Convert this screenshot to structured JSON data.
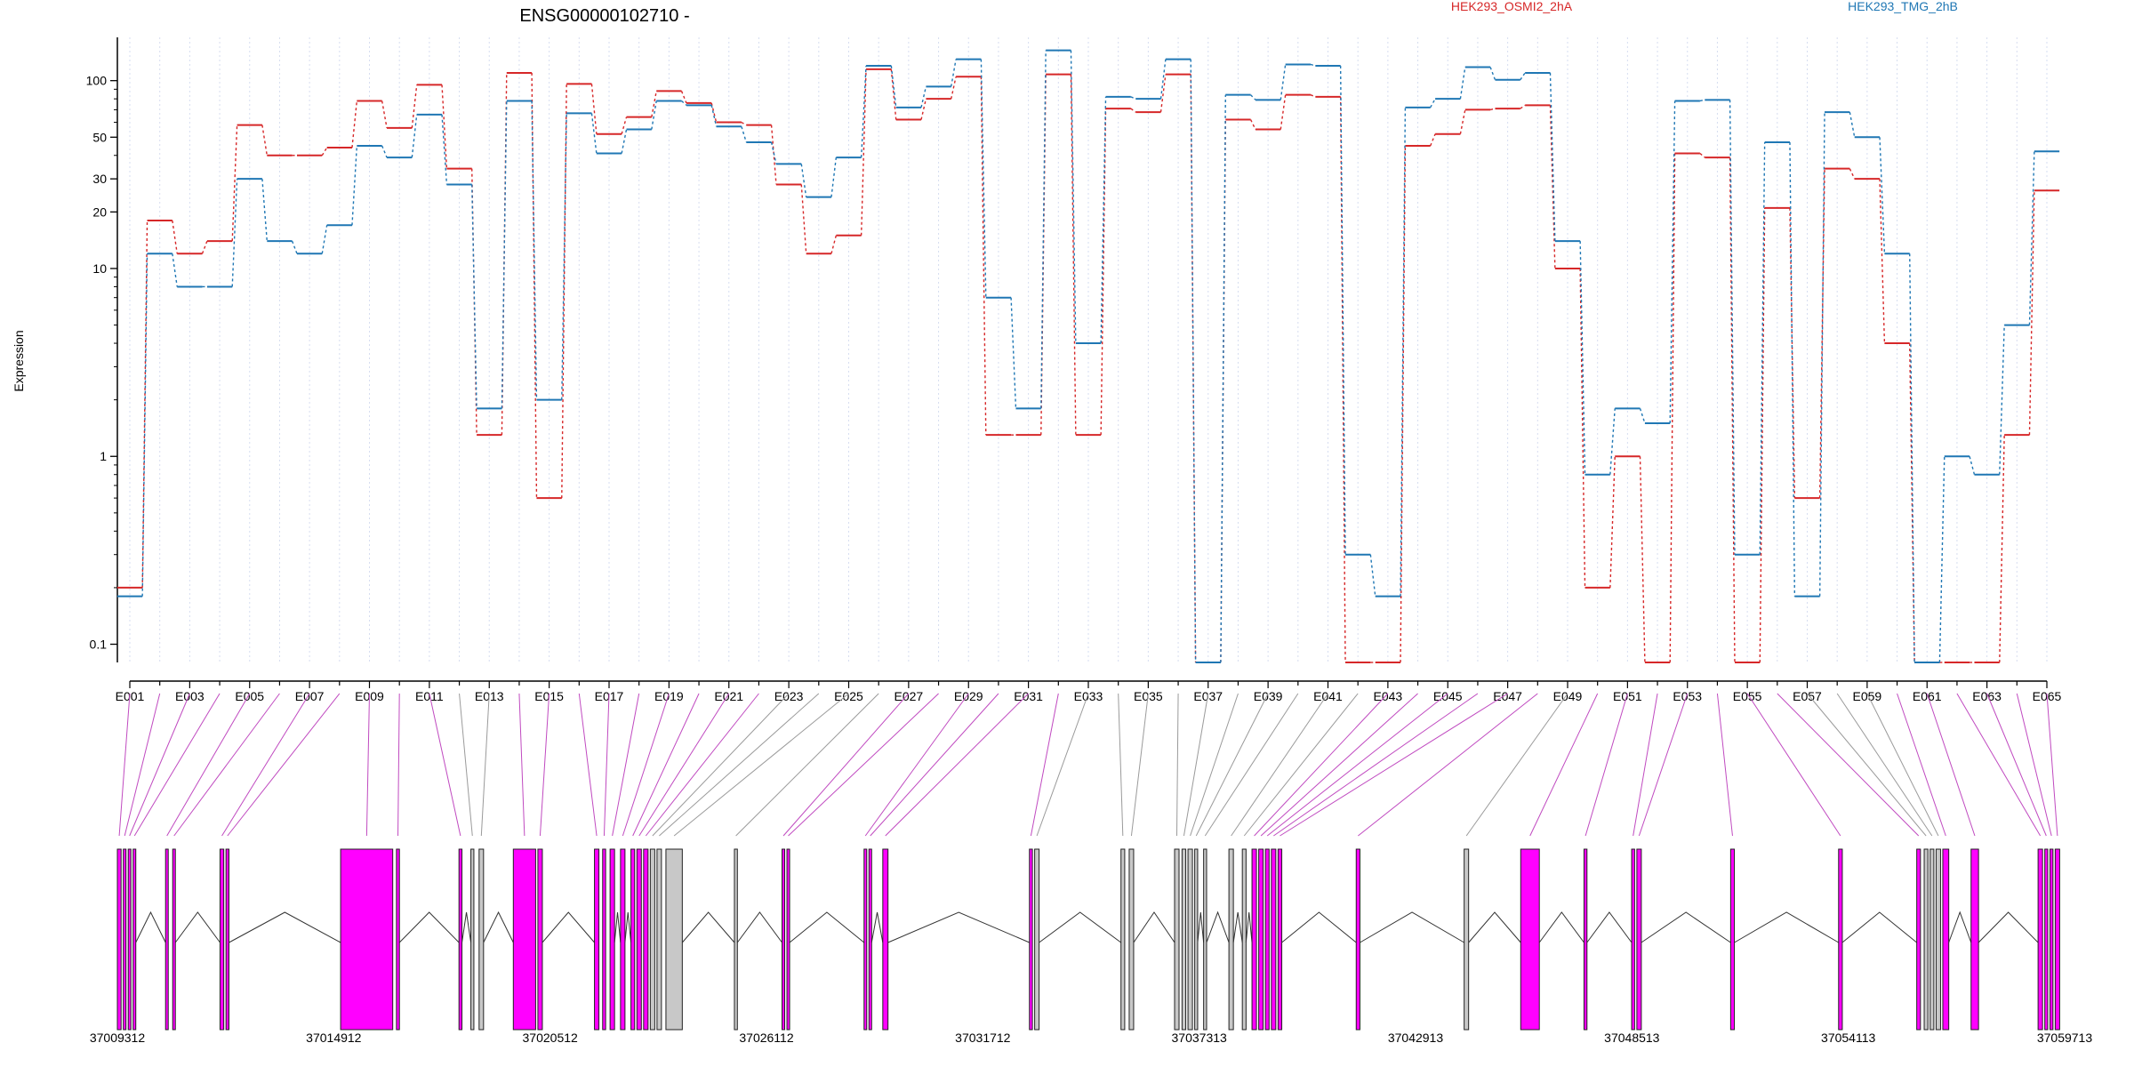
{
  "chart_data": {
    "type": "line",
    "title": "ENSG00000102710 -",
    "ylabel": "Expression",
    "xlabel": "",
    "y_scale": "log",
    "ylim": [
      0.08,
      170
    ],
    "y_ticks": [
      0.1,
      1,
      10,
      20,
      30,
      50,
      100
    ],
    "y_tick_labels": [
      "0.1",
      "1",
      "10",
      "20",
      "30",
      "50",
      "100"
    ],
    "grid": "vertical dotted lines at each exon",
    "legend": "top",
    "categories": [
      "E001",
      "E002",
      "E003",
      "E004",
      "E005",
      "E006",
      "E007",
      "E008",
      "E009",
      "E010",
      "E011",
      "E012",
      "E013",
      "E014",
      "E015",
      "E016",
      "E017",
      "E018",
      "E019",
      "E020",
      "E021",
      "E022",
      "E023",
      "E024",
      "E025",
      "E026",
      "E027",
      "E028",
      "E029",
      "E030",
      "E031",
      "E032",
      "E033",
      "E034",
      "E035",
      "E036",
      "E037",
      "E038",
      "E039",
      "E040",
      "E041",
      "E042",
      "E043",
      "E044",
      "E045",
      "E046",
      "E047",
      "E048",
      "E049",
      "E050",
      "E051",
      "E052",
      "E053",
      "E054",
      "E055",
      "E056",
      "E057",
      "E058",
      "E059",
      "E060",
      "E061",
      "E062",
      "E063",
      "E064",
      "E065"
    ],
    "x_tick_labels": [
      "E001",
      "E003",
      "E005",
      "E007",
      "E009",
      "E011",
      "E013",
      "E015",
      "E017",
      "E019",
      "E021",
      "E023",
      "E025",
      "E027",
      "E029",
      "E031",
      "E033",
      "E035",
      "E037",
      "E039",
      "E041",
      "E043",
      "E045",
      "E047",
      "E049",
      "E051",
      "E053",
      "E055",
      "E057",
      "E059",
      "E061",
      "E063",
      "E065"
    ],
    "series": [
      {
        "name": "HEK293_OSMI2_2hA",
        "color": "#d62728",
        "values": [
          0.2,
          18,
          12,
          14,
          58,
          40,
          40,
          44,
          78,
          56,
          95,
          34,
          1.3,
          110,
          0.6,
          96,
          52,
          64,
          88,
          76,
          60,
          58,
          28,
          12,
          15,
          115,
          62,
          80,
          105,
          1.3,
          1.3,
          108,
          1.3,
          71,
          68,
          108,
          0.08,
          62,
          55,
          84,
          82,
          0.08,
          0.08,
          45,
          52,
          70,
          71,
          74,
          10,
          0.2,
          1,
          0.08,
          41,
          39,
          0.08,
          21,
          0.6,
          34,
          30,
          4,
          0.08,
          0.08,
          0.08,
          1.3,
          26
        ]
      },
      {
        "name": "HEK293_TMG_2hB",
        "color": "#1f77b4",
        "values": [
          0.18,
          12,
          8,
          8,
          30,
          14,
          12,
          17,
          45,
          39,
          66,
          28,
          1.8,
          78,
          2,
          67,
          41,
          55,
          78,
          74,
          57,
          47,
          36,
          24,
          39,
          120,
          72,
          93,
          130,
          7,
          1.8,
          145,
          4,
          82,
          80,
          130,
          0.08,
          84,
          79,
          122,
          120,
          0.3,
          0.18,
          72,
          80,
          118,
          101,
          110,
          14,
          0.8,
          1.8,
          1.5,
          78,
          79,
          0.3,
          47,
          0.18,
          68,
          50,
          12,
          0.08,
          1,
          0.8,
          5,
          42
        ]
      }
    ],
    "gene_model": {
      "x_tick_labels": [
        "37009312",
        "37014912",
        "37020512",
        "37026112",
        "37031712",
        "37037313",
        "37042913",
        "37048513",
        "37054113",
        "37059713"
      ],
      "x_range": [
        37009312,
        59713
      ],
      "exon_colors": {
        "differential": "#ff00ff",
        "normal": "#c8c8c8",
        "outline": "#222222"
      }
    }
  }
}
